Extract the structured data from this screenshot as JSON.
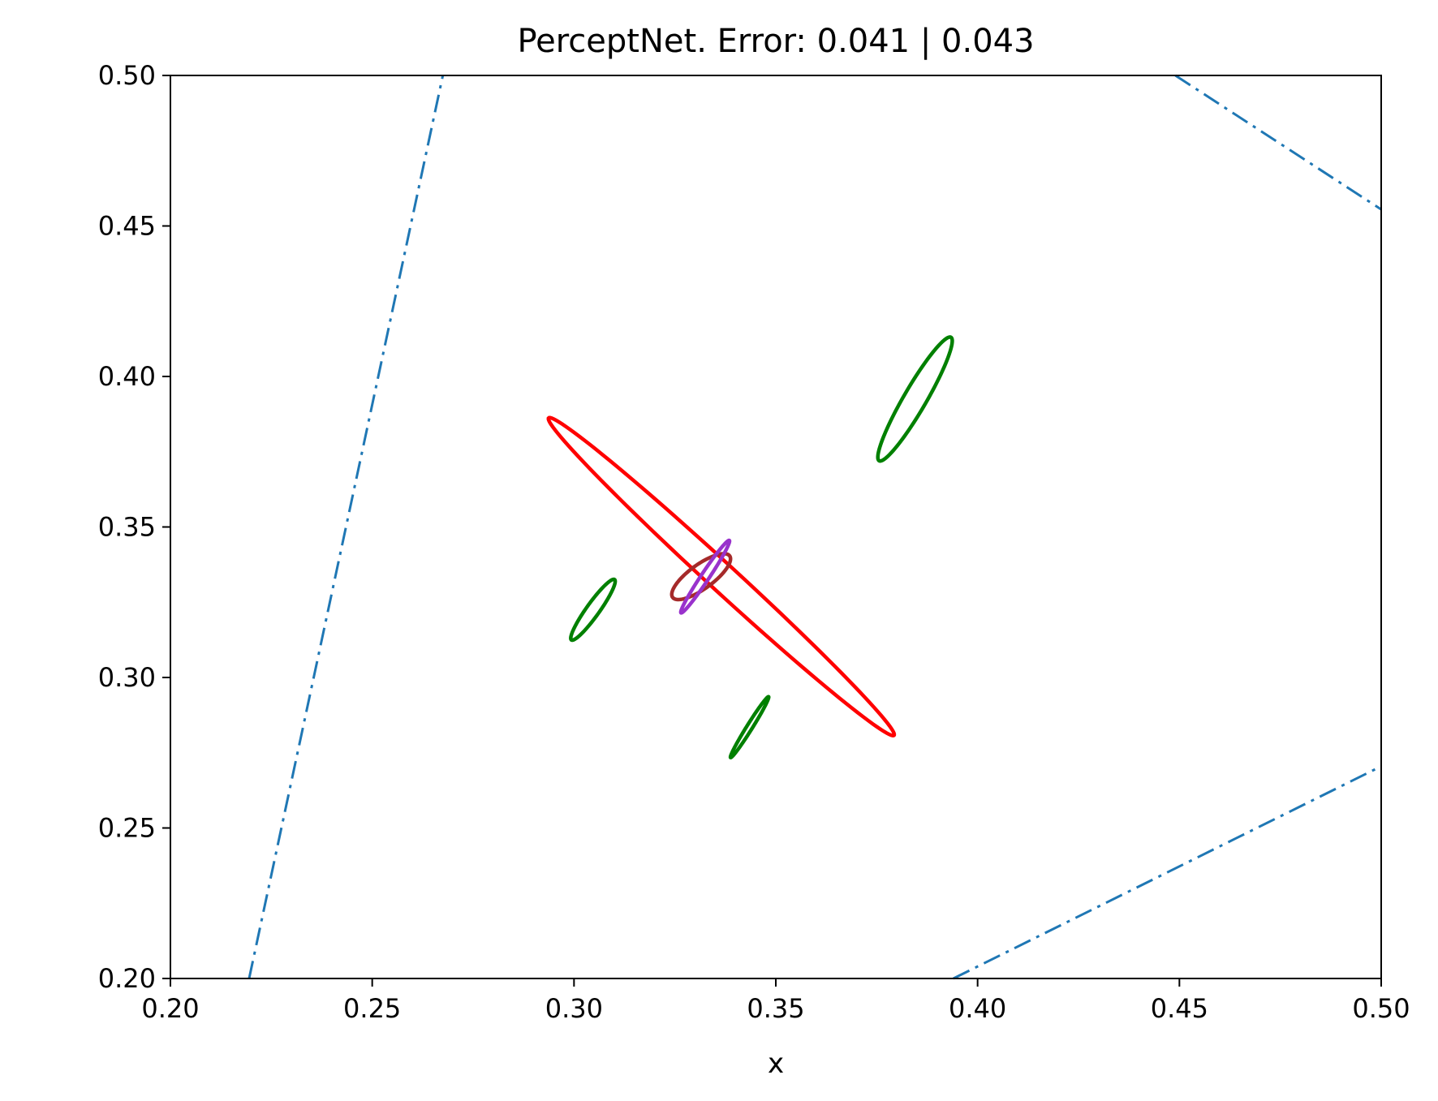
{
  "chart_data": {
    "type": "line",
    "title": "PerceptNet. Error: 0.041 | 0.043",
    "xlabel": "x",
    "ylabel": "",
    "xlim": [
      0.2,
      0.5
    ],
    "ylim": [
      0.2,
      0.5
    ],
    "xticks": [
      "0.20",
      "0.25",
      "0.30",
      "0.35",
      "0.40",
      "0.45",
      "0.50"
    ],
    "yticks": [
      "0.20",
      "0.25",
      "0.30",
      "0.35",
      "0.40",
      "0.45",
      "0.50"
    ],
    "grid": false,
    "legend": "none",
    "colors": {
      "boundary": "#1f77b4",
      "red_ellipse": "#ff0000",
      "green_ellipse": "#008000",
      "brown_ellipse": "#a52a2a",
      "purple_ellipse": "#9932cc"
    },
    "lines": [
      {
        "style": "dashdot",
        "color": "#1f77b4",
        "x": [
          0.2195,
          0.2675
        ],
        "y": [
          0.2,
          0.5
        ]
      },
      {
        "style": "dashdot",
        "color": "#1f77b4",
        "x": [
          0.449,
          0.5
        ],
        "y": [
          0.5,
          0.4555
        ]
      },
      {
        "style": "dashdot",
        "color": "#1f77b4",
        "x": [
          0.394,
          0.5
        ],
        "y": [
          0.2,
          0.2705
        ]
      }
    ],
    "ellipses": [
      {
        "color": "#ff0000",
        "cx": 0.3365,
        "cy": 0.3335,
        "rx_dir": [
          0.372,
          0.2935
        ],
        "ry_dir": [
          0.3125,
          0.368
        ]
      },
      {
        "color": "#008000",
        "cx": 0.3845,
        "cy": 0.3925,
        "rx_dir": [
          0.3905,
          0.4105
        ],
        "ry_dir": [
          0.3775,
          0.3825
        ]
      },
      {
        "color": "#008000",
        "cx": 0.3047,
        "cy": 0.3225,
        "rx_dir": [
          0.3095,
          0.3325
        ],
        "ry_dir": [
          0.302,
          0.321
        ]
      },
      {
        "color": "#008000",
        "cx": 0.3435,
        "cy": 0.2835,
        "rx_dir": [
          0.348,
          0.2935
        ],
        "ry_dir": [
          0.342,
          0.282
        ]
      },
      {
        "color": "#a52a2a",
        "cx": 0.3315,
        "cy": 0.3335,
        "rx_dir": [
          0.3385,
          0.3405
        ],
        "ry_dir": [
          0.3295,
          0.3365
        ]
      },
      {
        "color": "#9932cc",
        "cx": 0.3325,
        "cy": 0.3335,
        "rx_dir": [
          0.3385,
          0.3455
        ],
        "ry_dir": [
          0.3318,
          0.3345
        ]
      }
    ]
  }
}
